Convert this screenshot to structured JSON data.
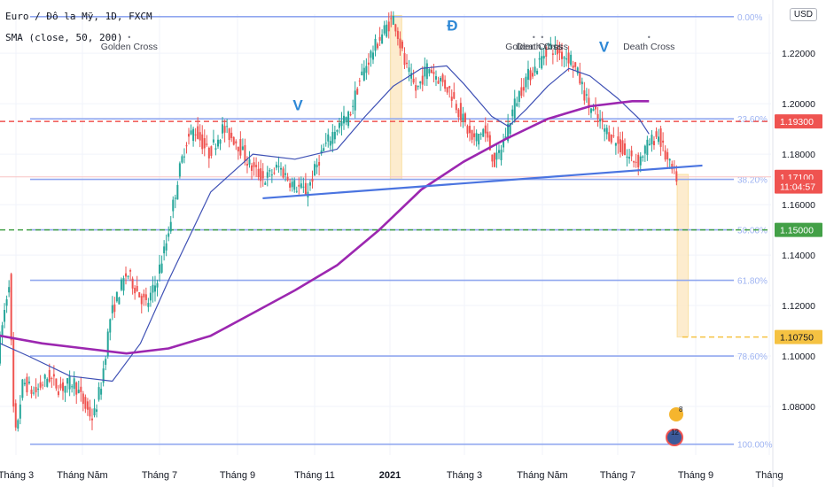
{
  "header": {
    "symbol_line": "Euro / Đô la Mỹ, 1D, FXCM",
    "indicator_line": "SMA (close, 50, 200)",
    "currency": "USD"
  },
  "colors": {
    "up": "#26a69a",
    "down": "#ef5350",
    "sma50": "#3f51b5",
    "sma200": "#9c27b0",
    "fib": "#90a7ef",
    "trend": "#4a74e0",
    "red_dash": "#ef5350",
    "green_dash": "#43a047",
    "orange_dash": "#f5c242"
  },
  "chart_data": {
    "type": "candlestick",
    "x_ticks": [
      "Tháng 3",
      "Tháng Năm",
      "Tháng 7",
      "Tháng 9",
      "Tháng 11",
      "2021",
      "Tháng 3",
      "Tháng Năm",
      "Tháng 7",
      "Tháng 9",
      "Tháng"
    ],
    "y_ticks": [
      "1.22000",
      "1.20000",
      "1.18000",
      "1.16000",
      "1.14000",
      "1.12000",
      "1.10000",
      "1.08000"
    ],
    "ylim": [
      1.0635,
      1.2355
    ],
    "fib_levels": [
      {
        "label": "0.00%",
        "price": 1.2345
      },
      {
        "label": "23.60%",
        "price": 1.194
      },
      {
        "label": "38.20%",
        "price": 1.17
      },
      {
        "label": "50.00%",
        "price": 1.15
      },
      {
        "label": "61.80%",
        "price": 1.13
      },
      {
        "label": "78.60%",
        "price": 1.1
      },
      {
        "label": "100.00%",
        "price": 1.065
      }
    ],
    "price_labels": [
      {
        "text": "1.19300",
        "price": 1.193,
        "color": "#ef5350"
      },
      {
        "text": "1.17100",
        "price": 1.171,
        "color": "#ef5350"
      },
      {
        "text": "11:04:57",
        "price": 1.1672,
        "color": "#ef5350"
      },
      {
        "text": "1.15000",
        "price": 1.15,
        "color": "#43a047"
      },
      {
        "text": "1.10750",
        "price": 1.1075,
        "color": "#f5c242"
      }
    ],
    "annotations": [
      {
        "text": "Golden Cross",
        "day": 92,
        "price": 1.2215
      },
      {
        "text": "Golden Cross",
        "day": 380,
        "price": 1.2215
      },
      {
        "text": "Death Cross",
        "day": 386,
        "price": 1.2215
      },
      {
        "text": "Death Cross",
        "day": 462,
        "price": 1.2215
      }
    ],
    "pattern_marks": [
      {
        "text": "V",
        "day": 212,
        "price": 1.1975
      },
      {
        "text": "Đ",
        "day": 322,
        "price": 1.229
      },
      {
        "text": "V",
        "day": 430,
        "price": 1.2205
      }
    ],
    "trend_line": {
      "start": {
        "day": 187,
        "price": 1.1625
      },
      "end": {
        "day": 500,
        "price": 1.1755
      }
    },
    "highlight_bands": [
      {
        "from_day": 278,
        "to_day": 286,
        "top": 1.235,
        "bottom": 1.17
      },
      {
        "from_day": 482,
        "to_day": 490,
        "top": 1.172,
        "bottom": 1.1075
      }
    ],
    "ohlc_keypoints": [
      {
        "day": 0,
        "price": 1.1
      },
      {
        "day": 8,
        "price": 1.13
      },
      {
        "day": 12,
        "price": 1.066
      },
      {
        "day": 18,
        "price": 1.09
      },
      {
        "day": 26,
        "price": 1.085
      },
      {
        "day": 36,
        "price": 1.092
      },
      {
        "day": 44,
        "price": 1.087
      },
      {
        "day": 54,
        "price": 1.09
      },
      {
        "day": 62,
        "price": 1.08
      },
      {
        "day": 68,
        "price": 1.075
      },
      {
        "day": 74,
        "price": 1.09
      },
      {
        "day": 80,
        "price": 1.115
      },
      {
        "day": 86,
        "price": 1.125
      },
      {
        "day": 92,
        "price": 1.133
      },
      {
        "day": 100,
        "price": 1.125
      },
      {
        "day": 106,
        "price": 1.12
      },
      {
        "day": 112,
        "price": 1.128
      },
      {
        "day": 120,
        "price": 1.145
      },
      {
        "day": 128,
        "price": 1.17
      },
      {
        "day": 134,
        "price": 1.185
      },
      {
        "day": 140,
        "price": 1.19
      },
      {
        "day": 150,
        "price": 1.18
      },
      {
        "day": 160,
        "price": 1.19
      },
      {
        "day": 170,
        "price": 1.185
      },
      {
        "day": 180,
        "price": 1.175
      },
      {
        "day": 190,
        "price": 1.17
      },
      {
        "day": 200,
        "price": 1.175
      },
      {
        "day": 210,
        "price": 1.168
      },
      {
        "day": 220,
        "price": 1.165
      },
      {
        "day": 230,
        "price": 1.18
      },
      {
        "day": 240,
        "price": 1.19
      },
      {
        "day": 250,
        "price": 1.195
      },
      {
        "day": 258,
        "price": 1.21
      },
      {
        "day": 266,
        "price": 1.22
      },
      {
        "day": 276,
        "price": 1.23
      },
      {
        "day": 282,
        "price": 1.234
      },
      {
        "day": 290,
        "price": 1.215
      },
      {
        "day": 298,
        "price": 1.205
      },
      {
        "day": 306,
        "price": 1.215
      },
      {
        "day": 314,
        "price": 1.21
      },
      {
        "day": 322,
        "price": 1.205
      },
      {
        "day": 330,
        "price": 1.195
      },
      {
        "day": 338,
        "price": 1.185
      },
      {
        "day": 346,
        "price": 1.19
      },
      {
        "day": 354,
        "price": 1.176
      },
      {
        "day": 360,
        "price": 1.185
      },
      {
        "day": 368,
        "price": 1.2
      },
      {
        "day": 376,
        "price": 1.21
      },
      {
        "day": 384,
        "price": 1.215
      },
      {
        "day": 392,
        "price": 1.223
      },
      {
        "day": 400,
        "price": 1.22
      },
      {
        "day": 408,
        "price": 1.218
      },
      {
        "day": 414,
        "price": 1.21
      },
      {
        "day": 420,
        "price": 1.2
      },
      {
        "day": 426,
        "price": 1.195
      },
      {
        "day": 432,
        "price": 1.19
      },
      {
        "day": 440,
        "price": 1.185
      },
      {
        "day": 448,
        "price": 1.179
      },
      {
        "day": 456,
        "price": 1.177
      },
      {
        "day": 462,
        "price": 1.183
      },
      {
        "day": 470,
        "price": 1.188
      },
      {
        "day": 476,
        "price": 1.178
      },
      {
        "day": 482,
        "price": 1.171
      }
    ],
    "series": [
      {
        "name": "SMA 50",
        "color": "#3f51b5",
        "points": [
          {
            "day": 0,
            "price": 1.105
          },
          {
            "day": 20,
            "price": 1.1
          },
          {
            "day": 50,
            "price": 1.092
          },
          {
            "day": 80,
            "price": 1.09
          },
          {
            "day": 100,
            "price": 1.105
          },
          {
            "day": 120,
            "price": 1.13
          },
          {
            "day": 150,
            "price": 1.165
          },
          {
            "day": 180,
            "price": 1.18
          },
          {
            "day": 210,
            "price": 1.178
          },
          {
            "day": 240,
            "price": 1.182
          },
          {
            "day": 260,
            "price": 1.195
          },
          {
            "day": 280,
            "price": 1.207
          },
          {
            "day": 300,
            "price": 1.214
          },
          {
            "day": 318,
            "price": 1.215
          },
          {
            "day": 330,
            "price": 1.208
          },
          {
            "day": 350,
            "price": 1.195
          },
          {
            "day": 362,
            "price": 1.191
          },
          {
            "day": 375,
            "price": 1.198
          },
          {
            "day": 390,
            "price": 1.207
          },
          {
            "day": 405,
            "price": 1.214
          },
          {
            "day": 420,
            "price": 1.211
          },
          {
            "day": 440,
            "price": 1.202
          },
          {
            "day": 455,
            "price": 1.194
          },
          {
            "day": 462,
            "price": 1.188
          }
        ]
      },
      {
        "name": "SMA 200",
        "color": "#9c27b0",
        "points": [
          {
            "day": 0,
            "price": 1.108
          },
          {
            "day": 30,
            "price": 1.105
          },
          {
            "day": 60,
            "price": 1.103
          },
          {
            "day": 90,
            "price": 1.101
          },
          {
            "day": 120,
            "price": 1.103
          },
          {
            "day": 150,
            "price": 1.108
          },
          {
            "day": 180,
            "price": 1.117
          },
          {
            "day": 210,
            "price": 1.126
          },
          {
            "day": 240,
            "price": 1.136
          },
          {
            "day": 270,
            "price": 1.15
          },
          {
            "day": 300,
            "price": 1.166
          },
          {
            "day": 330,
            "price": 1.177
          },
          {
            "day": 360,
            "price": 1.186
          },
          {
            "day": 390,
            "price": 1.194
          },
          {
            "day": 420,
            "price": 1.199
          },
          {
            "day": 450,
            "price": 1.201
          },
          {
            "day": 462,
            "price": 1.201
          }
        ]
      }
    ]
  }
}
